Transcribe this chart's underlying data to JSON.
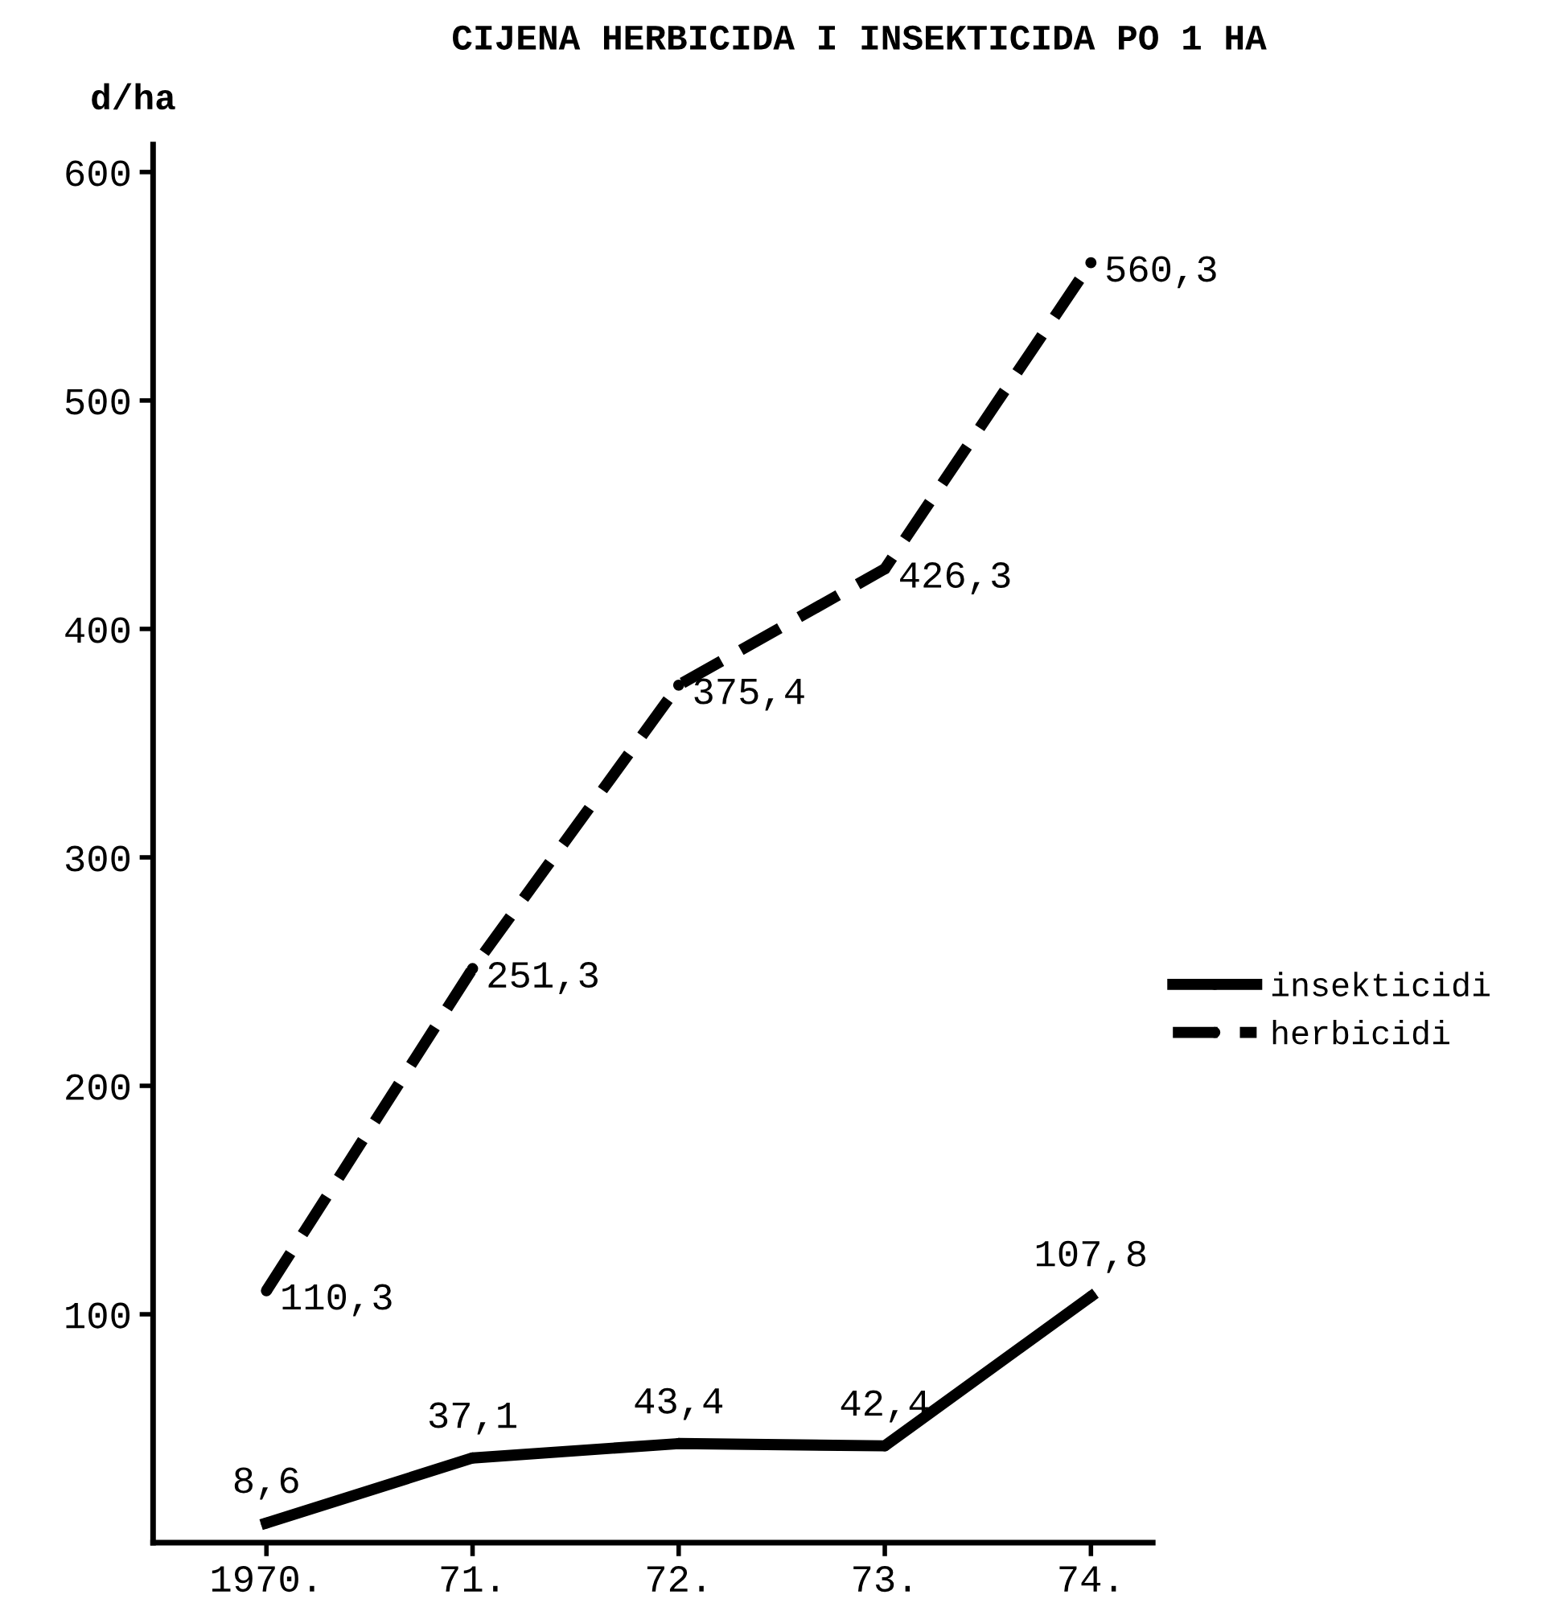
{
  "chart_data": {
    "type": "line",
    "title": "CIJENA HERBICIDA I INSEKTICIDA PO 1 HA",
    "ylabel": "d/ha",
    "categories": [
      "1970.",
      "71.",
      "72.",
      "73.",
      "74."
    ],
    "series": [
      {
        "name": "insekticidi",
        "color": "#000000",
        "line_style": "solid",
        "values": [
          8.6,
          37.1,
          43.4,
          42.4,
          107.8
        ],
        "value_labels": [
          "8,6",
          "37,1",
          "43,4",
          "42,4",
          "107,8"
        ]
      },
      {
        "name": "herbicidi",
        "color": "#000000",
        "line_style": "dashed",
        "values": [
          110.3,
          251.3,
          375.4,
          426.3,
          560.3
        ],
        "value_labels": [
          "110,3",
          "251,3",
          "375,4",
          "426,3",
          "560,3"
        ]
      }
    ],
    "ylim": [
      0,
      612
    ],
    "yticks": [
      100,
      200,
      300,
      400,
      500,
      600
    ],
    "grid": false,
    "legend": "right",
    "marker": "circle"
  }
}
